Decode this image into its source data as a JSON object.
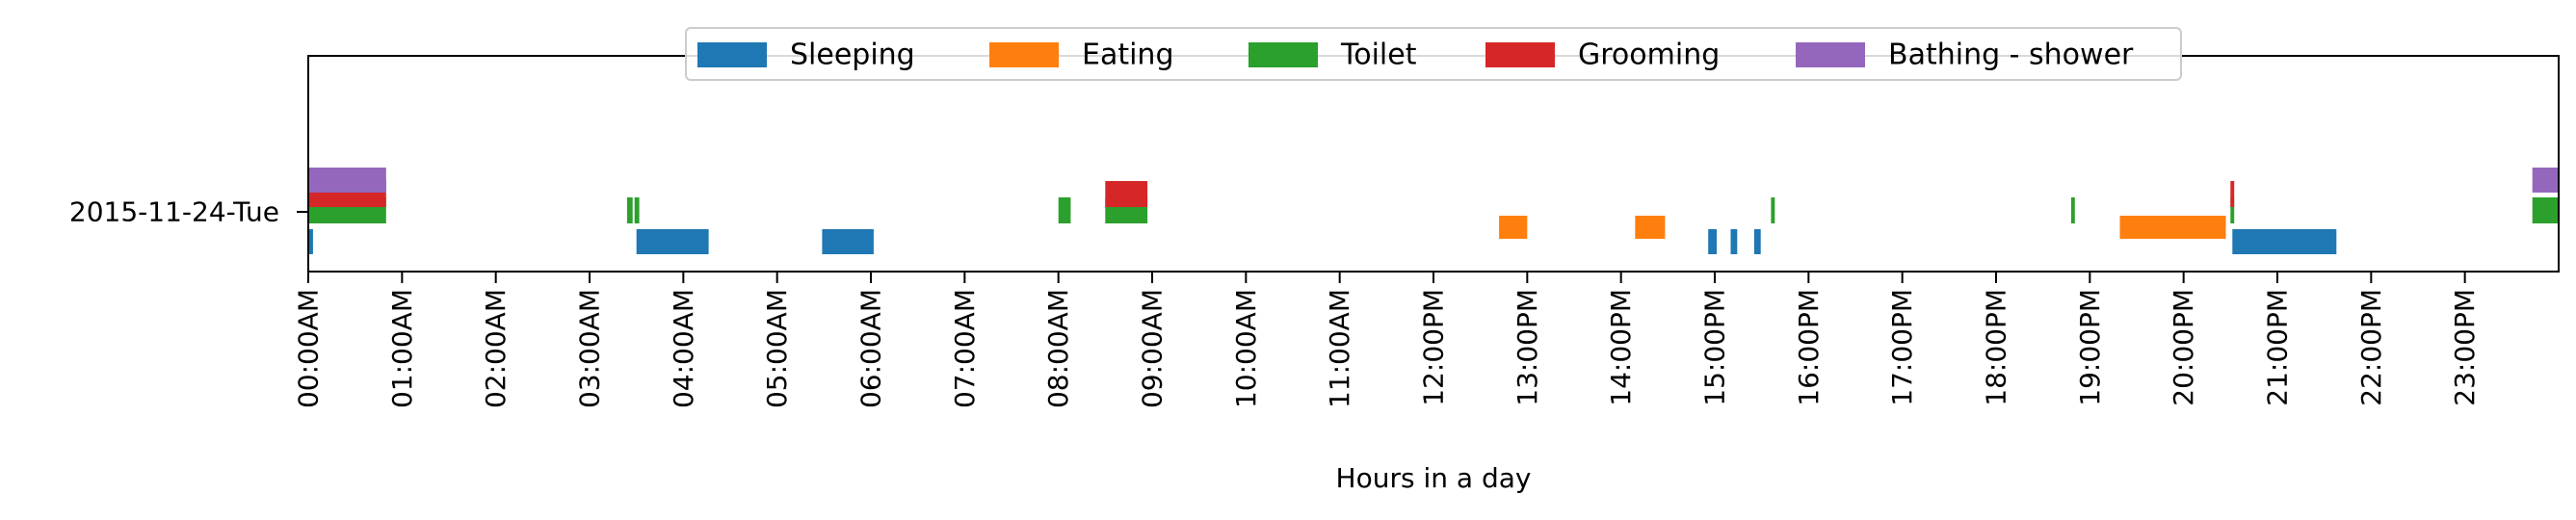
{
  "chart_data": {
    "type": "timeline",
    "xlabel": "Hours in a day",
    "x_unit": "hours",
    "xlim": [
      0,
      24
    ],
    "x_ticks": [
      {
        "hour": 0,
        "label": "00:00AM"
      },
      {
        "hour": 1,
        "label": "01:00AM"
      },
      {
        "hour": 2,
        "label": "02:00AM"
      },
      {
        "hour": 3,
        "label": "03:00AM"
      },
      {
        "hour": 4,
        "label": "04:00AM"
      },
      {
        "hour": 5,
        "label": "05:00AM"
      },
      {
        "hour": 6,
        "label": "06:00AM"
      },
      {
        "hour": 7,
        "label": "07:00AM"
      },
      {
        "hour": 8,
        "label": "08:00AM"
      },
      {
        "hour": 9,
        "label": "09:00AM"
      },
      {
        "hour": 10,
        "label": "10:00AM"
      },
      {
        "hour": 11,
        "label": "11:00AM"
      },
      {
        "hour": 12,
        "label": "12:00PM"
      },
      {
        "hour": 13,
        "label": "13:00PM"
      },
      {
        "hour": 14,
        "label": "14:00PM"
      },
      {
        "hour": 15,
        "label": "15:00PM"
      },
      {
        "hour": 16,
        "label": "16:00PM"
      },
      {
        "hour": 17,
        "label": "17:00PM"
      },
      {
        "hour": 18,
        "label": "18:00PM"
      },
      {
        "hour": 19,
        "label": "19:00PM"
      },
      {
        "hour": 20,
        "label": "20:00PM"
      },
      {
        "hour": 21,
        "label": "21:00PM"
      },
      {
        "hour": 22,
        "label": "22:00PM"
      },
      {
        "hour": 23,
        "label": "23:00PM"
      }
    ],
    "categories": [
      "2015-11-24-Tue"
    ],
    "legend_position": "top-center",
    "grid": false,
    "series": [
      {
        "name": "Sleeping",
        "color": "#1f77b4",
        "lane": 0,
        "intervals": [
          [
            0.0,
            0.05
          ],
          [
            3.5,
            4.27
          ],
          [
            5.48,
            6.03
          ],
          [
            14.93,
            15.02
          ],
          [
            15.17,
            15.24
          ],
          [
            15.42,
            15.49
          ],
          [
            20.52,
            21.63
          ]
        ]
      },
      {
        "name": "Eating",
        "color": "#ff7f0e",
        "lane": 1,
        "intervals": [
          [
            12.7,
            13.0
          ],
          [
            14.15,
            14.47
          ],
          [
            19.32,
            20.45
          ]
        ]
      },
      {
        "name": "Toilet",
        "color": "#2ca02c",
        "lane": 2,
        "intervals": [
          [
            0.0,
            0.83
          ],
          [
            3.4,
            3.46
          ],
          [
            3.48,
            3.53
          ],
          [
            8.0,
            8.13
          ],
          [
            8.5,
            8.95
          ],
          [
            15.6,
            15.64
          ],
          [
            18.8,
            18.84
          ],
          [
            20.5,
            20.54
          ],
          [
            23.72,
            24.0
          ]
        ]
      },
      {
        "name": "Grooming",
        "color": "#d62728",
        "lane": 3,
        "intervals": [
          [
            0.0,
            0.83
          ],
          [
            8.5,
            8.95
          ],
          [
            20.5,
            20.54
          ]
        ]
      },
      {
        "name": "Bathing - shower",
        "color": "#9467bd",
        "lane": 4,
        "intervals": [
          [
            0.0,
            0.83
          ],
          [
            23.72,
            24.0
          ]
        ]
      }
    ]
  }
}
